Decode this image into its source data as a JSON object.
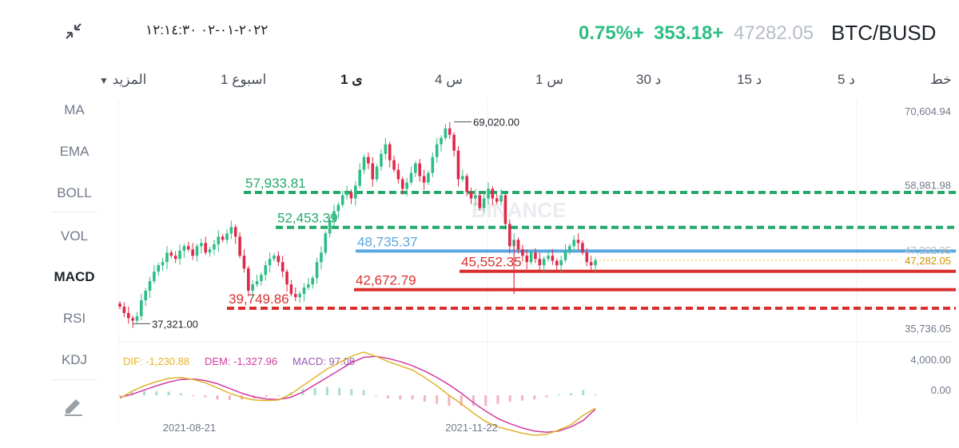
{
  "header": {
    "pair": "BTC/BUSD",
    "price": "47282.05",
    "change": "353.18+",
    "change_pct": "0.75%+",
    "datetime": "٢٠٢٢-٠١-٠٢ ١٢:١٤:٣٠"
  },
  "timeframes": [
    {
      "label": "خط"
    },
    {
      "label": "5 د"
    },
    {
      "label": "15 د"
    },
    {
      "label": "30 د"
    },
    {
      "label": "1 س"
    },
    {
      "label": "4 س"
    },
    {
      "label": "1 ى"
    },
    {
      "label": "1 اسبوع"
    },
    {
      "label": "المزيد"
    }
  ],
  "active_timeframe": "1 ى",
  "indicators": [
    {
      "label": "MA"
    },
    {
      "label": "EMA"
    },
    {
      "label": "BOLL"
    },
    {
      "label": "VOL"
    },
    {
      "label": "MACD"
    },
    {
      "label": "RSI"
    },
    {
      "label": "KDJ"
    }
  ],
  "active_indicator": "MACD",
  "watermark": "BINANCE",
  "colors": {
    "up": "#2ebd85",
    "down": "#e0294a",
    "green_line": "#24a96b",
    "blue_line": "#5aa8e0",
    "red_line": "#d9302f",
    "dif": "#e0b42a",
    "dem": "#d23aa0",
    "macd": "#9b59b6"
  },
  "chart_data": {
    "type": "candlestick",
    "pair": "BTC/BUSD",
    "interval": "1 ى",
    "y_ticks": [
      "70,604.94",
      "58,981.98",
      "47,282.05",
      "35,736.05"
    ],
    "ylim": [
      35736.05,
      70604.94
    ],
    "current_price": 47282.05,
    "current_price_label": "47,282.05",
    "high": {
      "value": 69020.0,
      "label": "69,020.00"
    },
    "low": {
      "value": 37321.0,
      "label": "37,321.00"
    },
    "x_ticks": [
      "2021-08-21",
      "2021-11-22"
    ],
    "horizontal_levels": [
      {
        "value": 57933.81,
        "label": "57,933.81",
        "color": "green",
        "style": "dashed"
      },
      {
        "value": 52453.39,
        "label": "52,453.39",
        "color": "green",
        "style": "dashed"
      },
      {
        "value": 48735.37,
        "label": "48,735.37",
        "color": "blue",
        "style": "solid"
      },
      {
        "value": 45552.35,
        "label": "45,552.35",
        "color": "red",
        "style": "solid"
      },
      {
        "value": 42672.79,
        "label": "42,672.79",
        "color": "red",
        "style": "solid"
      },
      {
        "value": 39749.86,
        "label": "39,749.86",
        "color": "red",
        "style": "dashed"
      }
    ],
    "close_series": [
      40000,
      39000,
      38200,
      37800,
      38500,
      41000,
      42500,
      44000,
      45500,
      46500,
      47000,
      48500,
      48000,
      47500,
      48800,
      49500,
      49000,
      48000,
      49500,
      50000,
      48500,
      49000,
      49800,
      51000,
      50500,
      51500,
      52500,
      51000,
      48000,
      46000,
      42500,
      43500,
      44000,
      45000,
      46500,
      47500,
      48000,
      47000,
      45500,
      43500,
      42000,
      41500,
      42000,
      43000,
      43500,
      44500,
      47000,
      48500,
      51500,
      53500,
      55000,
      56000,
      57500,
      58000,
      57000,
      59000,
      61500,
      63500,
      62500,
      60000,
      62000,
      64000,
      65500,
      63000,
      61500,
      60000,
      58500,
      59500,
      61000,
      62500,
      60500,
      59500,
      61000,
      63500,
      65500,
      66500,
      68000,
      67000,
      64500,
      60000,
      60500,
      58000,
      57000,
      57500,
      55500,
      57000,
      58500,
      57000,
      56500,
      57500,
      53000,
      49500,
      50500,
      49000,
      48000,
      47000,
      48500,
      47500,
      46500,
      47500,
      48000,
      47200,
      46500,
      47300,
      48800,
      49500,
      50500,
      50000,
      48500,
      47000,
      46500,
      47282.05
    ],
    "macd": {
      "dif_label": "DIF: -1,230.88",
      "dem_label": "DEM: -1,327.96",
      "macd_label": "MACD: 97.08",
      "y_ticks": [
        "4,000.00",
        "0.00"
      ],
      "ylim": [
        -4500,
        4600
      ],
      "dif": [
        -300,
        400,
        900,
        1300,
        1600,
        1700,
        1500,
        1200,
        700,
        200,
        -200,
        -450,
        -500,
        -450,
        100,
        900,
        1700,
        2500,
        3100,
        3700,
        4100,
        3700,
        3200,
        2800,
        2400,
        1700,
        900,
        0,
        -800,
        -1700,
        -2500,
        -3000,
        -3300,
        -3600,
        -3800,
        -3700,
        -3300,
        -2800,
        -1900,
        -1230.88
      ],
      "dem": [
        -200,
        100,
        500,
        900,
        1250,
        1500,
        1550,
        1400,
        1100,
        650,
        200,
        -150,
        -350,
        -400,
        -200,
        300,
        1000,
        1700,
        2400,
        3100,
        3600,
        3700,
        3500,
        3200,
        2800,
        2300,
        1700,
        1000,
        200,
        -700,
        -1500,
        -2200,
        -2700,
        -3100,
        -3400,
        -3500,
        -3400,
        -3000,
        -2400,
        -1327.96
      ],
      "hist": [
        -100,
        300,
        400,
        400,
        350,
        200,
        -50,
        -200,
        -400,
        -450,
        -400,
        -300,
        -150,
        -50,
        300,
        600,
        700,
        800,
        700,
        600,
        500,
        0,
        -300,
        -400,
        -400,
        -600,
        -800,
        -1000,
        -1000,
        -1000,
        -1000,
        -800,
        -600,
        -500,
        -400,
        -200,
        100,
        200,
        500,
        97.08
      ]
    }
  }
}
